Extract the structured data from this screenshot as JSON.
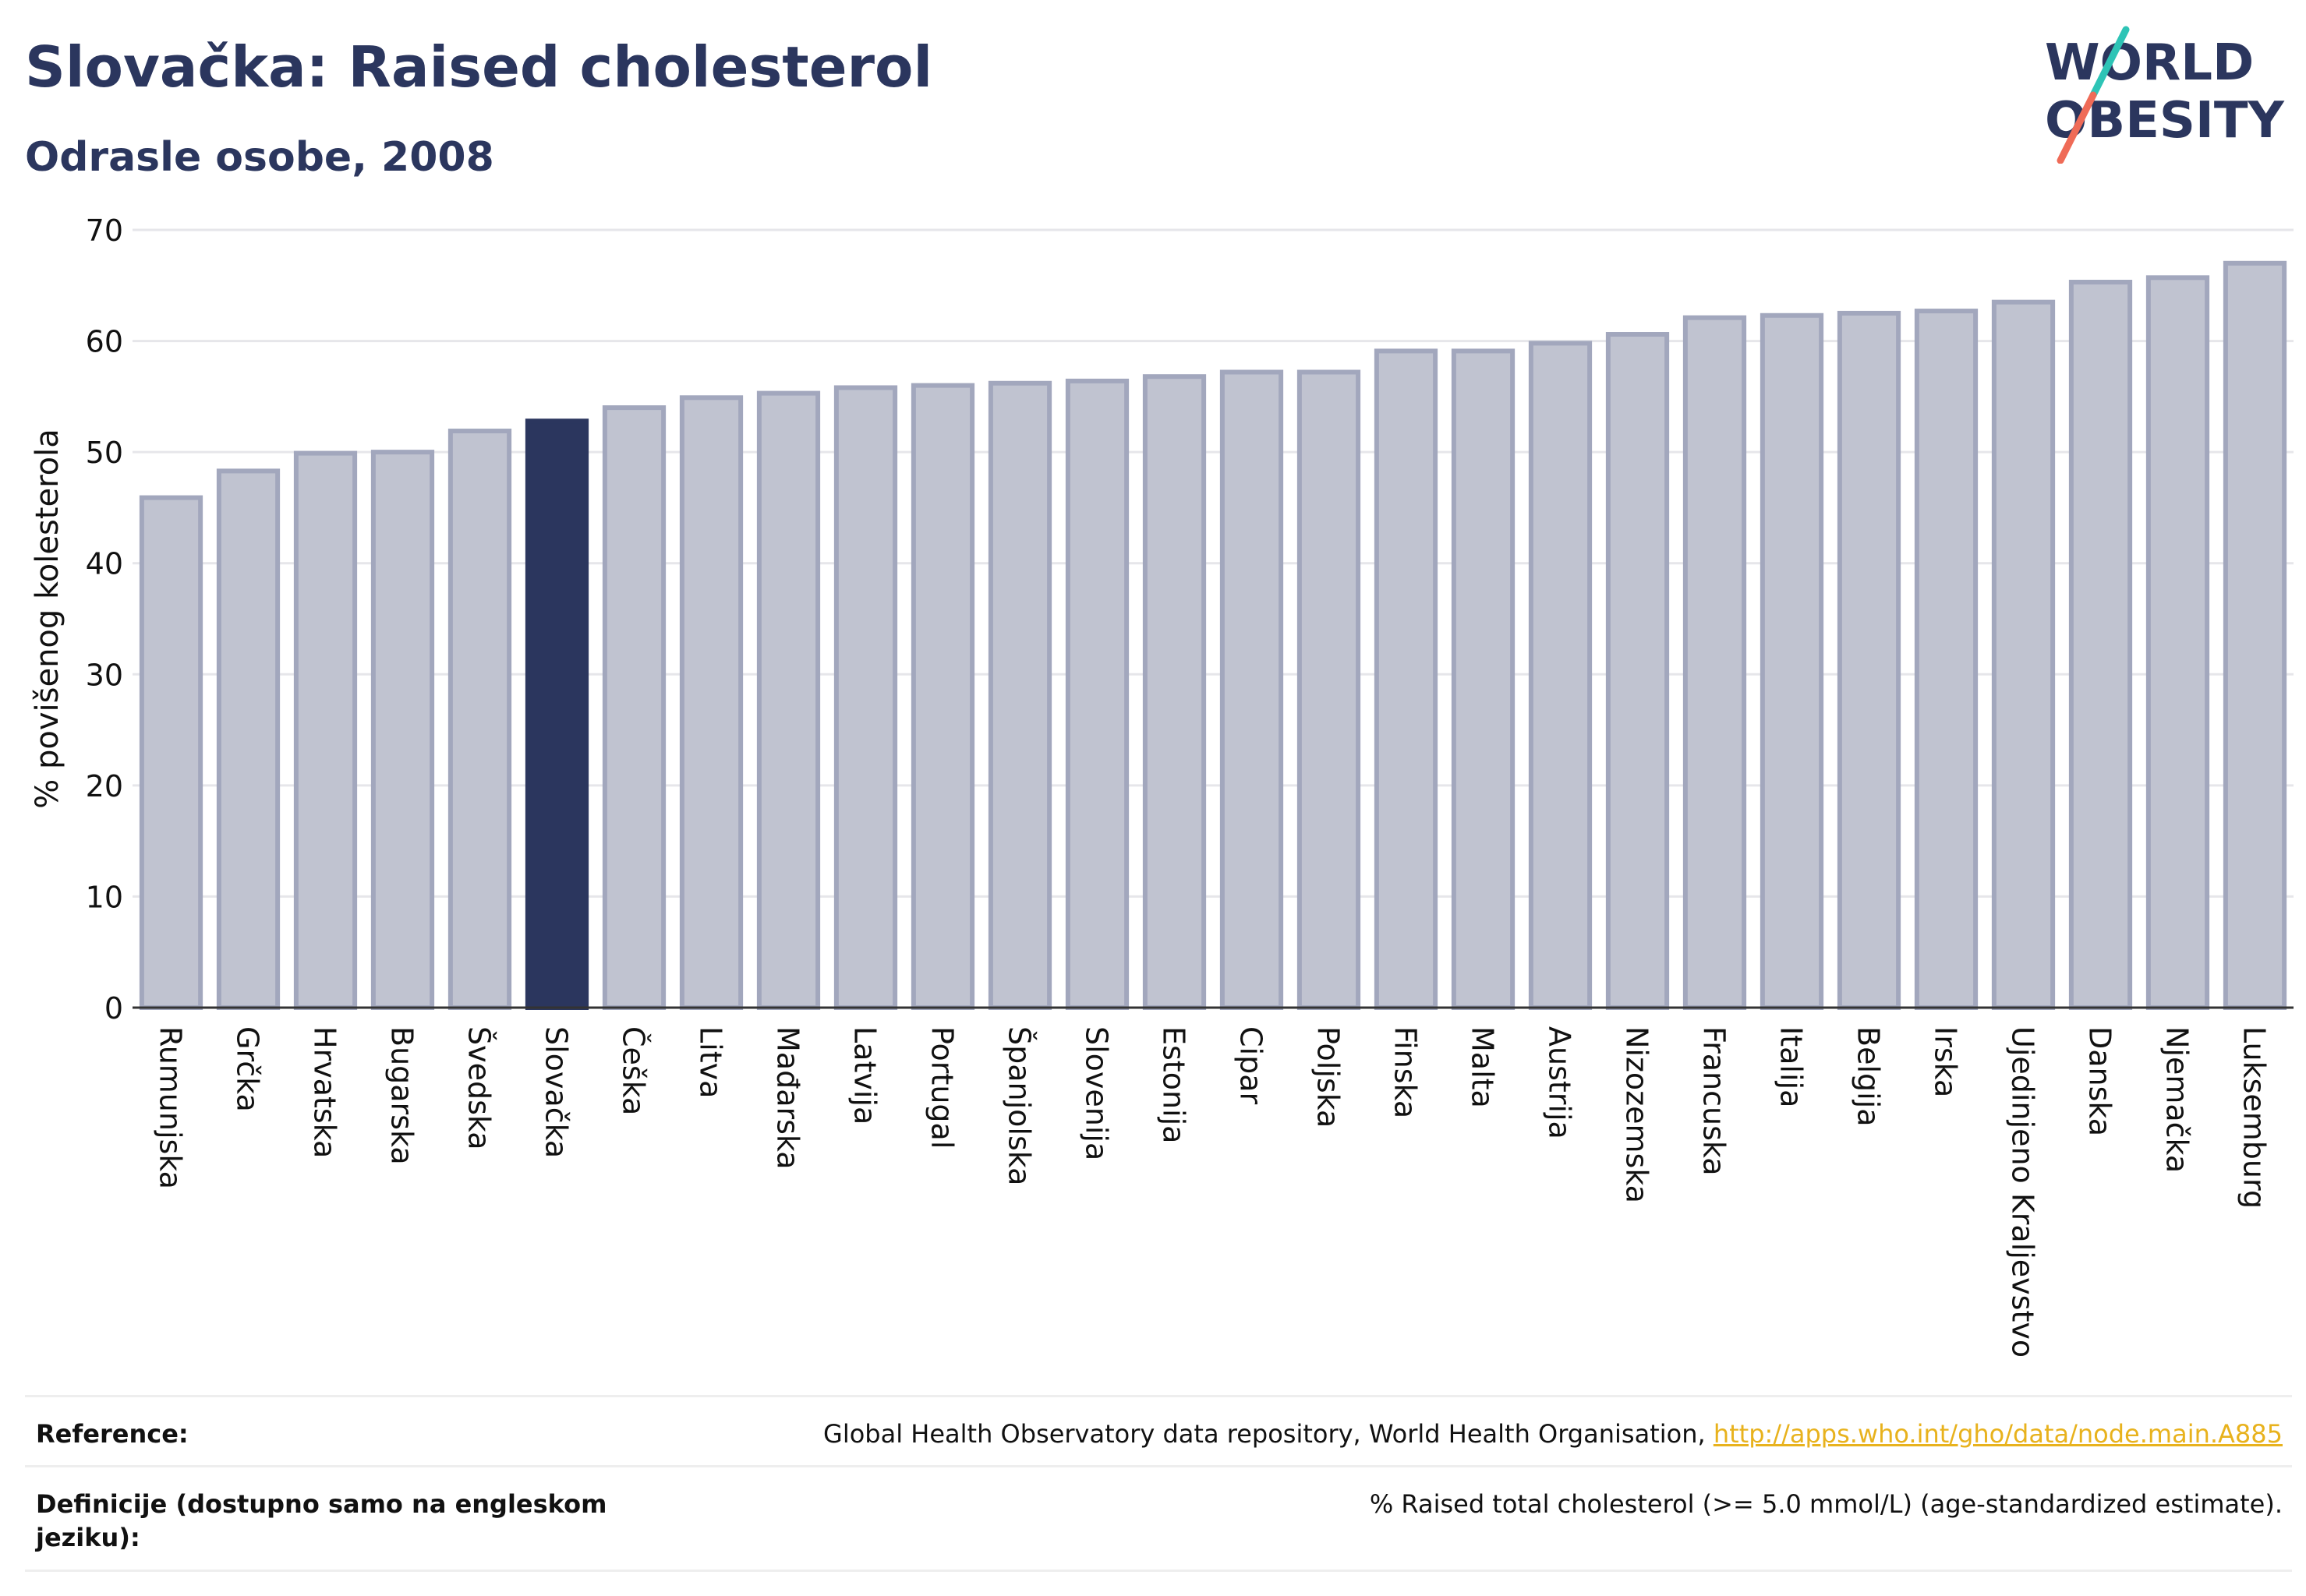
{
  "header": {
    "title": "Slovačka: Raised cholesterol",
    "subtitle": "Odrasle osobe, 2008"
  },
  "logo": {
    "line1": "WORLD",
    "line2": "OBESITY",
    "colors": {
      "text": "#2b365e",
      "slash_top": "#2ec4b6",
      "slash_bottom": "#ef6b57"
    }
  },
  "chart_data": {
    "type": "bar",
    "ylabel": "% povišenog kolesterola",
    "xlabel": "",
    "ylim": [
      0,
      70
    ],
    "yticks": [
      0,
      10,
      20,
      30,
      40,
      50,
      60,
      70
    ],
    "grid": true,
    "highlight": "Slovačka",
    "categories": [
      "Rumunjska",
      "Grčka",
      "Hrvatska",
      "Bugarska",
      "Švedska",
      "Slovačka",
      "Češka",
      "Litva",
      "Mađarska",
      "Latvija",
      "Portugal",
      "Španjolska",
      "Slovenija",
      "Estonija",
      "Cipar",
      "Poljska",
      "Finska",
      "Malta",
      "Austrija",
      "Nizozemska",
      "Francuska",
      "Italija",
      "Belgija",
      "Irska",
      "Ujedinjeno Kraljevstvo",
      "Danska",
      "Njemačka",
      "Luksemburg"
    ],
    "values": [
      45.9,
      48.3,
      49.9,
      50.0,
      51.9,
      52.8,
      54.0,
      54.9,
      55.3,
      55.8,
      56.0,
      56.2,
      56.4,
      56.8,
      57.2,
      57.2,
      59.1,
      59.1,
      59.8,
      60.6,
      62.1,
      62.3,
      62.5,
      62.7,
      63.5,
      65.3,
      65.7,
      67.0
    ],
    "colors": {
      "bar": "#c0c3d0",
      "bar_border": "#a2a7bd",
      "highlight": "#2b365e",
      "grid": "#e6e6ea",
      "axis": "#333333"
    }
  },
  "footer": {
    "reference_label": "Reference:",
    "reference_text": "Global Health Observatory data repository, World Health Organisation, ",
    "reference_link": "http://apps.who.int/gho/data/node.main.A885",
    "definition_label": "Definicije (dostupno samo na engleskom jeziku):",
    "definition_text": "% Raised total cholesterol (>= 5.0 mmol/L) (age-standardized estimate)."
  }
}
